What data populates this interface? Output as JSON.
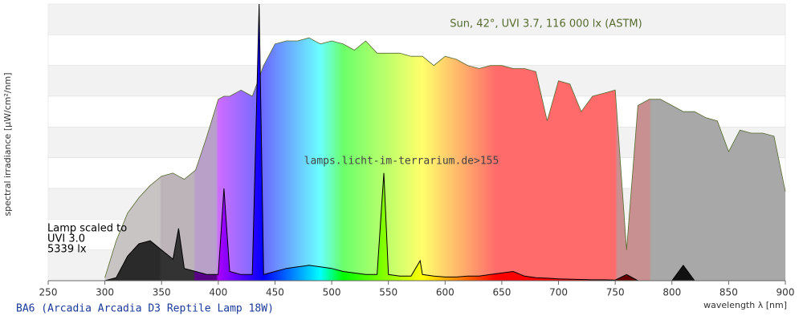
{
  "chart_data": {
    "type": "area",
    "title": "BA6 (Arcadia Arcadia D3 Reptile Lamp 18W)",
    "watermark": "lamps.licht-im-terrarium.de>155",
    "x_label": "wavelength λ [nm]",
    "y_label": "spectral irradiance [µW/cm²/nm]",
    "xlim": [
      250,
      900
    ],
    "ylim": [
      0,
      90
    ],
    "xticks": [
      250,
      300,
      350,
      400,
      450,
      500,
      550,
      600,
      650,
      700,
      750,
      800,
      850,
      900
    ],
    "x": [
      300,
      310,
      320,
      330,
      340,
      350,
      360,
      365,
      370,
      380,
      390,
      400,
      405,
      410,
      420,
      430,
      436,
      440,
      450,
      460,
      470,
      480,
      490,
      500,
      510,
      520,
      530,
      540,
      546,
      550,
      560,
      570,
      578,
      580,
      590,
      600,
      610,
      620,
      630,
      640,
      650,
      660,
      670,
      680,
      690,
      700,
      710,
      720,
      730,
      740,
      750,
      760,
      770,
      780,
      790,
      800,
      810,
      820,
      830,
      840,
      850,
      860,
      870,
      880,
      890,
      900
    ],
    "series": [
      {
        "name": "Sun, 42°, UVI 3.7, 116 000 lx (ASTM)",
        "color": "#556b2f",
        "values": [
          1,
          13,
          22,
          27,
          31,
          34,
          35,
          34,
          33,
          36,
          47,
          59,
          60,
          60,
          62,
          60,
          66,
          70,
          77,
          78,
          78,
          79,
          77,
          78,
          77,
          75,
          78,
          74,
          74,
          74,
          74,
          73,
          73,
          73,
          70,
          73,
          72,
          70,
          69,
          70,
          70,
          69,
          69,
          68,
          52,
          65,
          64,
          55,
          60,
          61,
          62,
          10,
          57,
          59,
          59,
          57,
          55,
          55,
          53,
          52,
          42,
          49,
          48,
          48,
          47,
          29
        ]
      },
      {
        "name": "Lamp scaled to",
        "lines": [
          "UVI 3.0",
          "5339 lx"
        ],
        "color": "#000000",
        "values": [
          0,
          1,
          8,
          12,
          13,
          10,
          7,
          17,
          4,
          3,
          2,
          2,
          30,
          3,
          2,
          2,
          90,
          2,
          3,
          4,
          4.5,
          5,
          4.5,
          4,
          3,
          2.5,
          2,
          2,
          35,
          2,
          1.5,
          1.5,
          6.5,
          2,
          1.5,
          1.2,
          1.2,
          1.5,
          1.5,
          2,
          2.5,
          3,
          1.5,
          1,
          0.8,
          0.6,
          0.5,
          0.4,
          0.3,
          0.3,
          0.2,
          2,
          0,
          0,
          0,
          0,
          5,
          0,
          0,
          0,
          0,
          0,
          0,
          0,
          0,
          0
        ]
      }
    ]
  }
}
